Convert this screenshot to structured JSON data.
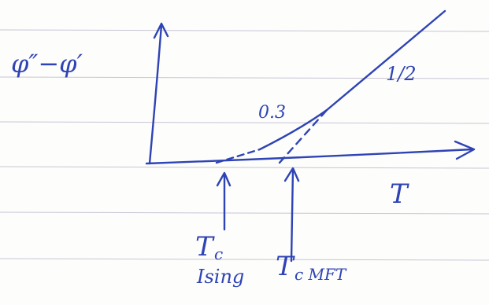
{
  "labels": {
    "y_axis": "φ″−φ′",
    "x_axis": "T",
    "slope_high": "1/2",
    "slope_low": "0.3",
    "tc_ising": {
      "symbol": "T",
      "subscript": "c",
      "note": "Ising"
    },
    "tc_mft": {
      "symbol": "T",
      "subscript": "c MFT"
    }
  }
}
